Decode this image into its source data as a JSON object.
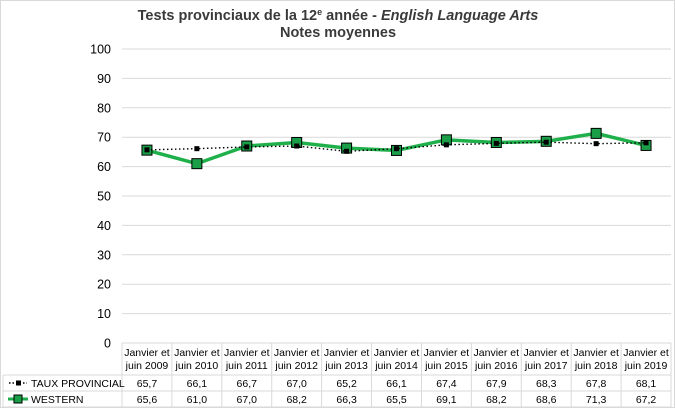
{
  "chart_data": {
    "type": "line",
    "title_line1_prefix": "Tests provinciaux de la 12",
    "title_line1_sup": "e",
    "title_line1_mid": " année - ",
    "title_line1_italic": "English Language Arts",
    "title_line2": "Notes moyennes",
    "xlabel": "",
    "ylabel": "",
    "ylim": [
      0,
      100
    ],
    "yticks": [
      0,
      10,
      20,
      30,
      40,
      50,
      60,
      70,
      80,
      90,
      100
    ],
    "grid": true,
    "categories": [
      [
        "Janvier et",
        "juin 2009"
      ],
      [
        "Janvier et",
        "juin 2010"
      ],
      [
        "Janvier et",
        "juin 2011"
      ],
      [
        "Janvier et",
        "juin 2012"
      ],
      [
        "Janvier et",
        "juin 2013"
      ],
      [
        "Janvier et",
        "juin 2014"
      ],
      [
        "Janvier et",
        "juin 2015"
      ],
      [
        "Janvier et",
        "juin 2016"
      ],
      [
        "Janvier et",
        "juin 2017"
      ],
      [
        "Janvier et",
        "juin 2018"
      ],
      [
        "Janvier et",
        "juin 2019"
      ]
    ],
    "series": [
      {
        "name": "TAUX PROVINCIAL",
        "style": "dotted",
        "color": "#000000",
        "values": [
          65.7,
          66.1,
          66.7,
          67.0,
          65.2,
          66.1,
          67.4,
          67.9,
          68.3,
          67.8,
          68.1
        ],
        "labels": [
          "65,7",
          "66,1",
          "66,7",
          "67,0",
          "65,2",
          "66,1",
          "67,4",
          "67,9",
          "68,3",
          "67,8",
          "68,1"
        ]
      },
      {
        "name": "WESTERN",
        "style": "solid",
        "color": "#1fb04b",
        "marker_color": "#1a9e48",
        "values": [
          65.6,
          61.0,
          67.0,
          68.2,
          66.3,
          65.5,
          69.1,
          68.2,
          68.6,
          71.3,
          67.2
        ],
        "labels": [
          "65,6",
          "61,0",
          "67,0",
          "68,2",
          "66,3",
          "65,5",
          "69,1",
          "68,2",
          "68,6",
          "71,3",
          "67,2"
        ]
      }
    ]
  }
}
